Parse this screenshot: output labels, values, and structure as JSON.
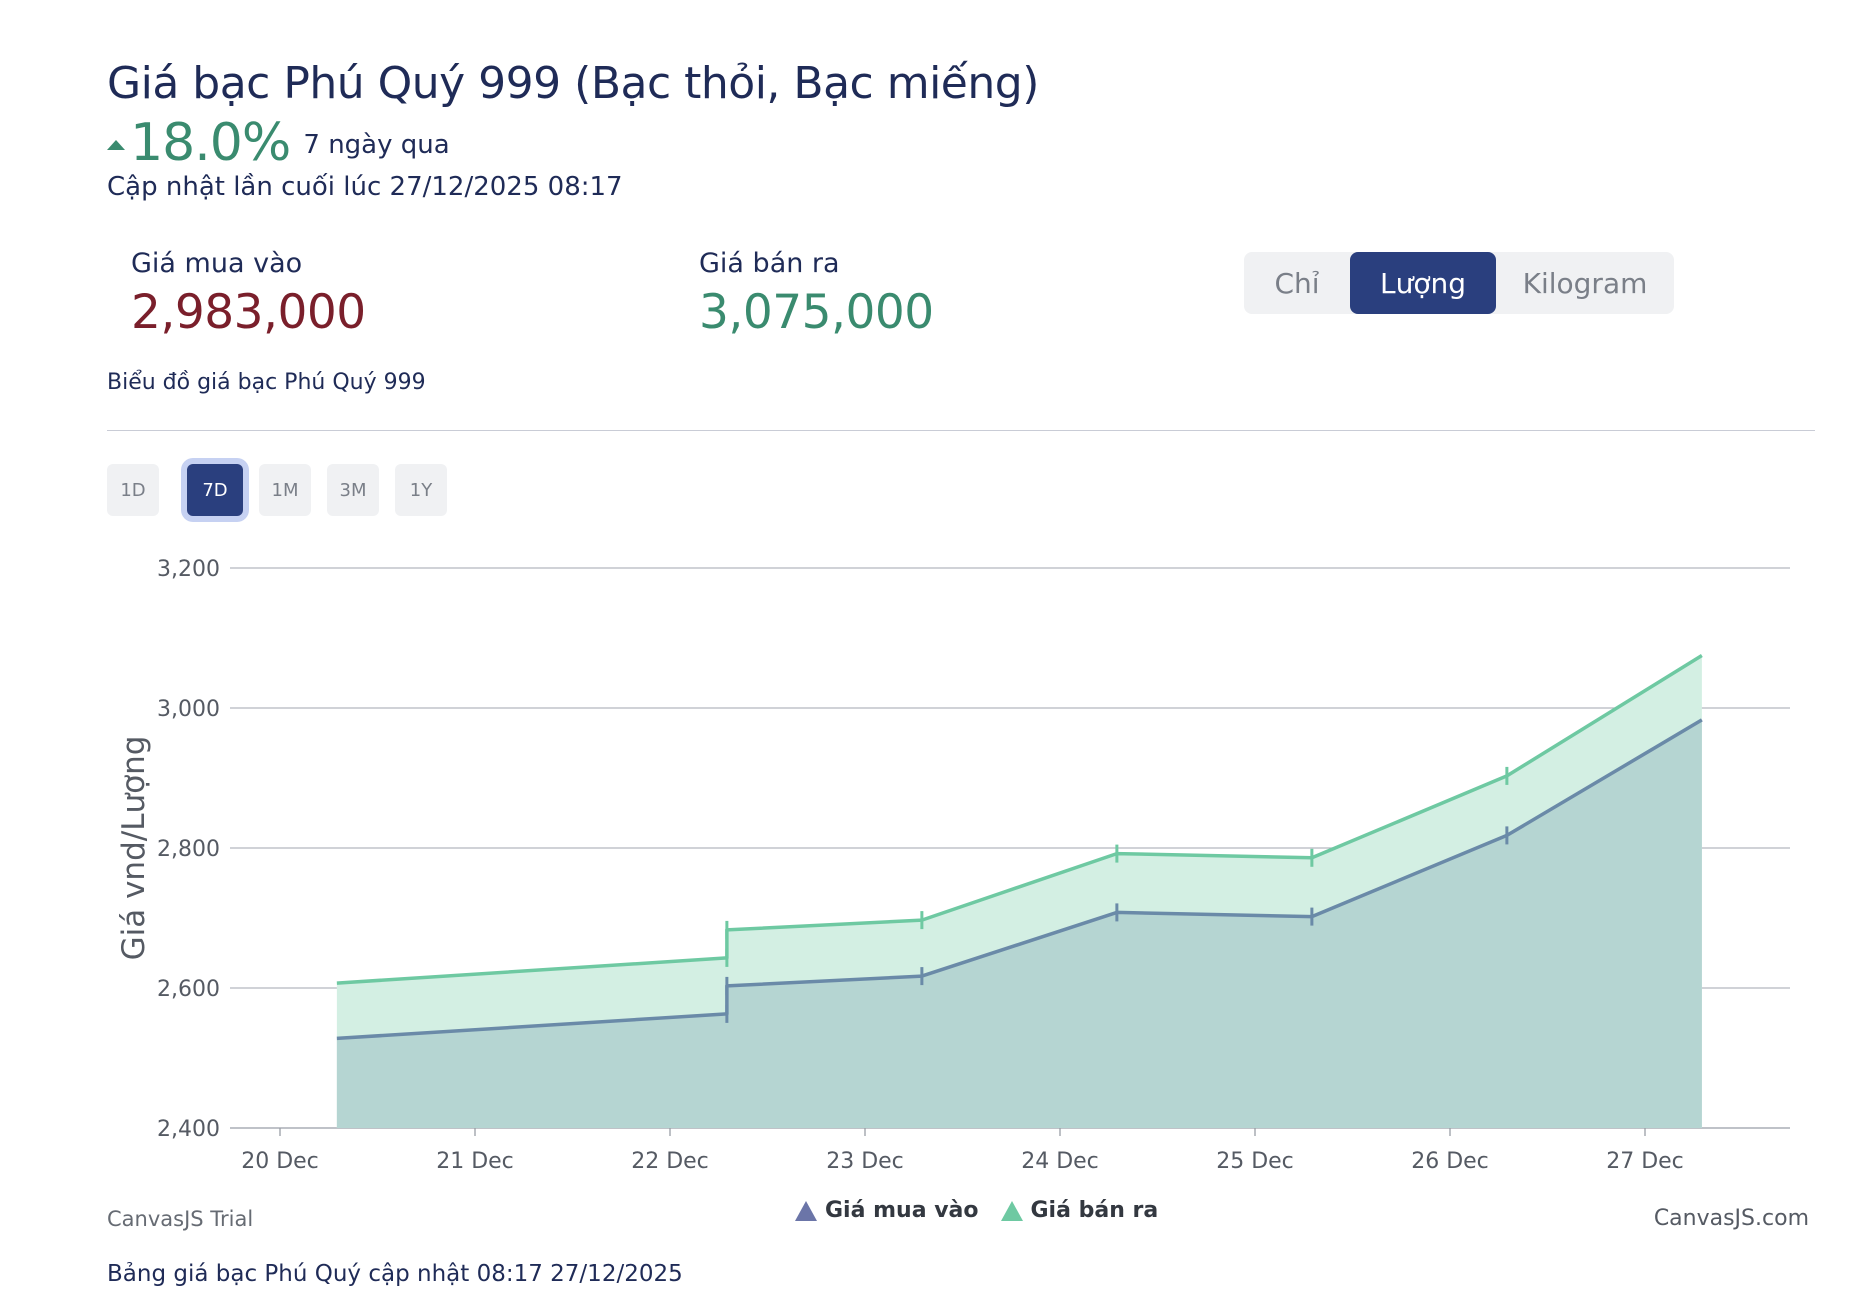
{
  "header": {
    "title": "Giá bạc Phú Quý 999 (Bạc thỏi, Bạc miếng)",
    "change_pct": "18.0%",
    "change_period": "7 ngày qua",
    "updated": "Cập nhật lần cuối lúc 27/12/2025 08:17",
    "change_color": "#3a8b6f"
  },
  "prices": {
    "buy_label": "Giá mua vào",
    "buy_value": "2,983,000",
    "buy_color": "#7a1f2b",
    "sell_label": "Giá bán ra",
    "sell_value": "3,075,000",
    "sell_color": "#3a8b6f"
  },
  "unit_toggle": {
    "options": [
      "Chỉ",
      "Lượng",
      "Kilogram"
    ],
    "selected": "Lượng",
    "active_color": "#2a3f7e"
  },
  "chart_heading": "Biểu đồ giá bạc Phú Quý 999",
  "range_buttons": {
    "options": [
      "1D",
      "7D",
      "1M",
      "3M",
      "1Y"
    ],
    "selected": "7D"
  },
  "chart_data": {
    "type": "area",
    "title": "",
    "xlabel": "",
    "ylabel": "Giá vnd/Lượng",
    "ylim": [
      2400,
      3200
    ],
    "yticks": [
      "2,400",
      "2,600",
      "2,800",
      "3,000",
      "3,200"
    ],
    "xticks": [
      "20 Dec",
      "21 Dec",
      "22 Dec",
      "23 Dec",
      "24 Dec",
      "25 Dec",
      "26 Dec",
      "27 Dec"
    ],
    "grid": true,
    "legend_position": "bottom-center",
    "series": [
      {
        "name": "Giá mua vào",
        "color": "#6a8aa8",
        "fill": "#b5d5d2",
        "points": [
          {
            "x": "2025-12-20 07:00",
            "y": 2528
          },
          {
            "x": "2025-12-22 07:00",
            "y": 2563
          },
          {
            "x": "2025-12-22 07:00",
            "y": 2603
          },
          {
            "x": "2025-12-23 07:00",
            "y": 2617
          },
          {
            "x": "2025-12-24 07:00",
            "y": 2708
          },
          {
            "x": "2025-12-25 07:00",
            "y": 2702
          },
          {
            "x": "2025-12-26 07:00",
            "y": 2818
          },
          {
            "x": "2025-12-27 07:00",
            "y": 2983
          }
        ]
      },
      {
        "name": "Giá bán ra",
        "color": "#6ec9a2",
        "fill": "#d3efe3",
        "points": [
          {
            "x": "2025-12-20 07:00",
            "y": 2607
          },
          {
            "x": "2025-12-22 07:00",
            "y": 2643
          },
          {
            "x": "2025-12-22 07:00",
            "y": 2683
          },
          {
            "x": "2025-12-23 07:00",
            "y": 2697
          },
          {
            "x": "2025-12-24 07:00",
            "y": 2792
          },
          {
            "x": "2025-12-25 07:00",
            "y": 2786
          },
          {
            "x": "2025-12-26 07:00",
            "y": 2903
          },
          {
            "x": "2025-12-27 07:00",
            "y": 3075
          }
        ]
      }
    ]
  },
  "credits": {
    "left": "CanvasJS Trial",
    "right": "CanvasJS.com"
  },
  "footer_note": "Bảng giá bạc Phú Quý cập nhật 08:17 27/12/2025"
}
